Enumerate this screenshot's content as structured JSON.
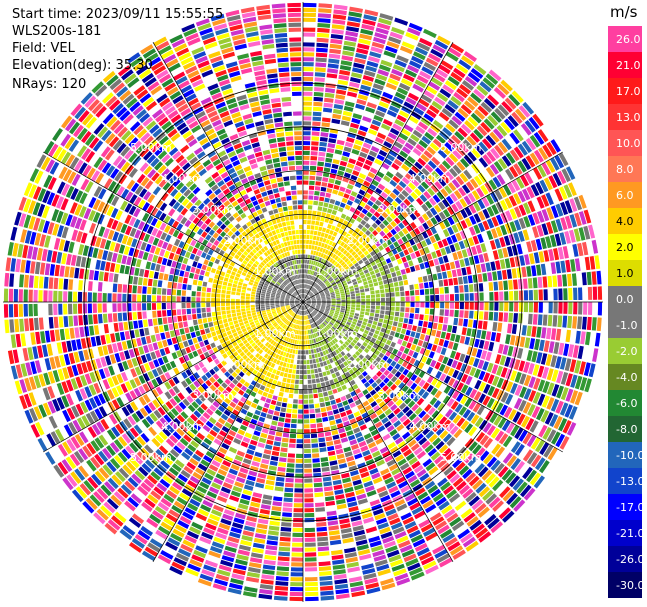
{
  "header": {
    "start_time": "Start time: 2023/09/11 15:55:55",
    "instrument": "WLS200s-181",
    "field": "Field: VEL",
    "elevation": "Elevation(deg): 35.30",
    "nrays": "NRays: 120"
  },
  "chart_data": {
    "type": "heatmap",
    "subtype": "polar_ppi",
    "field": "VEL",
    "unit": "m/s",
    "n_rays": 120,
    "elevation_deg": 35.3,
    "range_rings_km": [
      1.0,
      2.0,
      3.0,
      4.0,
      5.0
    ],
    "ring_labels": [
      "1.00km",
      "2.00km",
      "3.00km",
      "4.00km",
      "5.00km"
    ],
    "colorbar": {
      "unit_label": "m/s",
      "ticks": [
        "26.0",
        "21.0",
        "17.0",
        "13.0",
        "10.0",
        "8.0",
        "6.0",
        "4.0",
        "2.0",
        "1.0",
        "0.0",
        "-1.0",
        "-2.0",
        "-4.0",
        "-6.0",
        "-8.0",
        "-10.0",
        "-13.0",
        "-17.0",
        "-21.0",
        "-26.0",
        "-30.0"
      ],
      "colors": [
        "#ff3fa0",
        "#ff0033",
        "#ff1a1a",
        "#ff3333",
        "#ff5555",
        "#ff7755",
        "#ff9922",
        "#ffcc00",
        "#ffff00",
        "#dddd00",
        "#777777",
        "#777777",
        "#99cc33",
        "#668822",
        "#228833",
        "#226633",
        "#2266bb",
        "#1144cc",
        "#0000ff",
        "#0000cc",
        "#000099",
        "#000066"
      ]
    },
    "pattern": {
      "inner_gray_radius_km": 1.1,
      "yellow_band_km": [
        1.1,
        2.1
      ],
      "noise_beyond_km": 2.3
    }
  }
}
